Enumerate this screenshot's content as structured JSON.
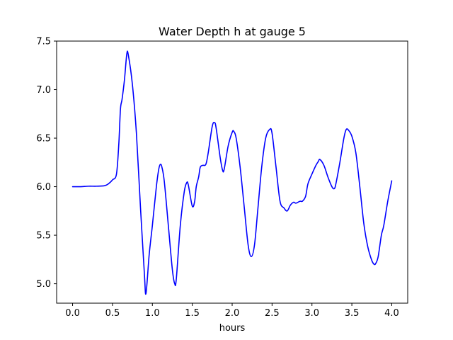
{
  "chart_data": {
    "type": "line",
    "title": "Water Depth h at gauge 5",
    "xlabel": "hours",
    "ylabel": "",
    "xlim": [
      -0.2,
      4.2
    ],
    "ylim": [
      4.8,
      7.5
    ],
    "xticks": [
      0.0,
      0.5,
      1.0,
      1.5,
      2.0,
      2.5,
      3.0,
      3.5,
      4.0
    ],
    "xtick_labels": [
      "0.0",
      "0.5",
      "1.0",
      "1.5",
      "2.0",
      "2.5",
      "3.0",
      "3.5",
      "4.0"
    ],
    "yticks": [
      5.0,
      5.5,
      6.0,
      6.5,
      7.0,
      7.5
    ],
    "ytick_labels": [
      "5.0",
      "5.5",
      "6.0",
      "6.5",
      "7.0",
      "7.5"
    ],
    "grid": false,
    "legend": "none",
    "series": [
      {
        "color": "#0000ff",
        "x": [
          0.0,
          0.1,
          0.2,
          0.3,
          0.4,
          0.45,
          0.5,
          0.55,
          0.58,
          0.6,
          0.62,
          0.65,
          0.68,
          0.7,
          0.75,
          0.8,
          0.85,
          0.9,
          0.92,
          0.96,
          1.0,
          1.05,
          1.08,
          1.1,
          1.12,
          1.15,
          1.2,
          1.25,
          1.28,
          1.3,
          1.35,
          1.4,
          1.43,
          1.45,
          1.5,
          1.53,
          1.55,
          1.58,
          1.6,
          1.63,
          1.67,
          1.7,
          1.75,
          1.78,
          1.8,
          1.85,
          1.88,
          1.9,
          1.95,
          2.0,
          2.02,
          2.05,
          2.1,
          2.15,
          2.2,
          2.24,
          2.28,
          2.32,
          2.37,
          2.42,
          2.47,
          2.5,
          2.55,
          2.6,
          2.65,
          2.69,
          2.73,
          2.77,
          2.8,
          2.85,
          2.88,
          2.92,
          2.95,
          3.0,
          3.05,
          3.08,
          3.1,
          3.15,
          3.2,
          3.25,
          3.28,
          3.3,
          3.35,
          3.4,
          3.43,
          3.46,
          3.5,
          3.55,
          3.6,
          3.65,
          3.7,
          3.75,
          3.78,
          3.8,
          3.83,
          3.87,
          3.9,
          3.95,
          4.0
        ],
        "y": [
          6.0,
          6.0,
          6.005,
          6.005,
          6.01,
          6.03,
          6.07,
          6.13,
          6.45,
          6.8,
          6.9,
          7.1,
          7.37,
          7.35,
          7.05,
          6.55,
          5.8,
          5.1,
          4.9,
          5.3,
          5.6,
          6.0,
          6.18,
          6.23,
          6.2,
          6.05,
          5.6,
          5.15,
          5.0,
          5.05,
          5.6,
          5.95,
          6.04,
          6.02,
          5.8,
          5.85,
          6.0,
          6.1,
          6.2,
          6.22,
          6.23,
          6.35,
          6.62,
          6.66,
          6.6,
          6.3,
          6.17,
          6.18,
          6.42,
          6.56,
          6.57,
          6.5,
          6.2,
          5.8,
          5.4,
          5.28,
          5.4,
          5.75,
          6.2,
          6.5,
          6.59,
          6.55,
          6.2,
          5.85,
          5.78,
          5.75,
          5.81,
          5.84,
          5.83,
          5.85,
          5.85,
          5.9,
          6.03,
          6.13,
          6.22,
          6.26,
          6.28,
          6.22,
          6.1,
          6.0,
          5.98,
          6.03,
          6.25,
          6.5,
          6.59,
          6.58,
          6.52,
          6.35,
          6.0,
          5.62,
          5.38,
          5.24,
          5.2,
          5.21,
          5.28,
          5.5,
          5.6,
          5.85,
          6.06
        ]
      }
    ]
  }
}
